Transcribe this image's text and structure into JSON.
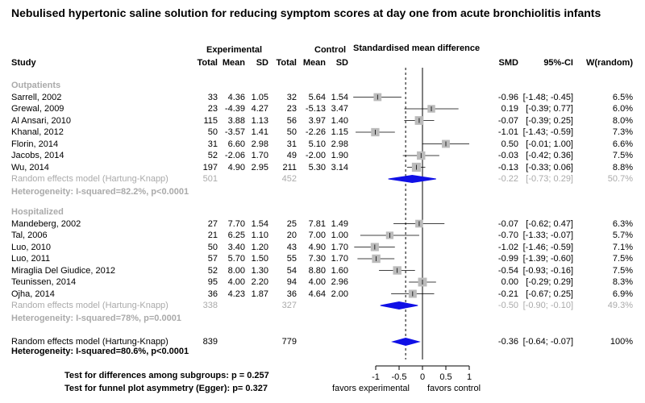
{
  "chart_data": {
    "type": "forest",
    "title": "Nebulised hypertonic saline solution for reducing symptom scores at day one from acute bronchiolitis infants",
    "header": {
      "experimental": "Experimental",
      "control": "Control",
      "effect": "Standardised mean difference",
      "study": "Study",
      "total_e": "Total",
      "mean_e": "Mean",
      "sd_e": "SD",
      "total_c": "Total",
      "mean_c": "Mean",
      "sd_c": "SD",
      "smd": "SMD",
      "ci": "95%-CI",
      "weight": "W(random)"
    },
    "x_axis": {
      "range": [
        -1.1,
        1.0
      ],
      "ticks": [
        -1,
        -0.5,
        0,
        0.5,
        1
      ],
      "tick_labels": [
        "-1",
        "-0.5",
        "0",
        "0.5",
        "1"
      ],
      "reference_line": 0,
      "pooled_line": -0.36,
      "label_left": "favors experimental",
      "label_right": "favors control"
    },
    "groups": [
      {
        "name": "Outpatients",
        "studies": [
          {
            "study": "Sarrell, 2002",
            "ne": "33",
            "me": "4.36",
            "sde": "1.05",
            "nc": "32",
            "mc": "5.64",
            "sdc": "1.54",
            "smd": "-0.96",
            "ci": "[-1.48; -0.45]",
            "w": "6.5%",
            "est": -0.96,
            "lo": -1.48,
            "hi": -0.45,
            "wt": 6.5
          },
          {
            "study": "Grewal, 2009",
            "ne": "23",
            "me": "-4.39",
            "sde": "4.27",
            "nc": "23",
            "mc": "-5.13",
            "sdc": "3.47",
            "smd": "0.19",
            "ci": "[-0.39; 0.77]",
            "w": "6.0%",
            "est": 0.19,
            "lo": -0.39,
            "hi": 0.77,
            "wt": 6.0
          },
          {
            "study": "Al Ansari, 2010",
            "ne": "115",
            "me": "3.88",
            "sde": "1.13",
            "nc": "56",
            "mc": "3.97",
            "sdc": "1.40",
            "smd": "-0.07",
            "ci": "[-0.39; 0.25]",
            "w": "8.0%",
            "est": -0.07,
            "lo": -0.39,
            "hi": 0.25,
            "wt": 8.0
          },
          {
            "study": "Khanal, 2012",
            "ne": "50",
            "me": "-3.57",
            "sde": "1.41",
            "nc": "50",
            "mc": "-2.26",
            "sdc": "1.15",
            "smd": "-1.01",
            "ci": "[-1.43; -0.59]",
            "w": "7.3%",
            "est": -1.01,
            "lo": -1.43,
            "hi": -0.59,
            "wt": 7.3
          },
          {
            "study": "Florin, 2014",
            "ne": "31",
            "me": "6.60",
            "sde": "2.98",
            "nc": "31",
            "mc": "5.10",
            "sdc": "2.98",
            "smd": "0.50",
            "ci": "[-0.01; 1.00]",
            "w": "6.6%",
            "est": 0.5,
            "lo": -0.01,
            "hi": 1.0,
            "wt": 6.6
          },
          {
            "study": "Jacobs, 2014",
            "ne": "52",
            "me": "-2.06",
            "sde": "1.70",
            "nc": "49",
            "mc": "-2.00",
            "sdc": "1.90",
            "smd": "-0.03",
            "ci": "[-0.42; 0.36]",
            "w": "7.5%",
            "est": -0.03,
            "lo": -0.42,
            "hi": 0.36,
            "wt": 7.5
          },
          {
            "study": "Wu, 2014",
            "ne": "197",
            "me": "4.90",
            "sde": "2.95",
            "nc": "211",
            "mc": "5.30",
            "sdc": "3.14",
            "smd": "-0.13",
            "ci": "[-0.33; 0.06]",
            "w": "8.8%",
            "est": -0.13,
            "lo": -0.33,
            "hi": 0.06,
            "wt": 8.8
          }
        ],
        "pooled": {
          "label": "Random effects model  (Hartung-Knapp)",
          "ne": "501",
          "nc": "452",
          "smd": "-0.22",
          "ci": "[-0.73; 0.29]",
          "w": "50.7%",
          "est": -0.22,
          "lo": -0.73,
          "hi": 0.29
        },
        "heterogeneity": "Heterogeneity: I-squared=82.2%, p<0.0001"
      },
      {
        "name": "Hospitalized",
        "studies": [
          {
            "study": "Mandeberg, 2002",
            "ne": "27",
            "me": "7.70",
            "sde": "1.54",
            "nc": "25",
            "mc": "7.81",
            "sdc": "1.49",
            "smd": "-0.07",
            "ci": "[-0.62; 0.47]",
            "w": "6.3%",
            "est": -0.07,
            "lo": -0.62,
            "hi": 0.47,
            "wt": 6.3
          },
          {
            "study": "Tal, 2006",
            "ne": "21",
            "me": "6.25",
            "sde": "1.10",
            "nc": "20",
            "mc": "7.00",
            "sdc": "1.00",
            "smd": "-0.70",
            "ci": "[-1.33; -0.07]",
            "w": "5.7%",
            "est": -0.7,
            "lo": -1.33,
            "hi": -0.07,
            "wt": 5.7
          },
          {
            "study": "Luo, 2010",
            "ne": "50",
            "me": "3.40",
            "sde": "1.20",
            "nc": "43",
            "mc": "4.90",
            "sdc": "1.70",
            "smd": "-1.02",
            "ci": "[-1.46; -0.59]",
            "w": "7.1%",
            "est": -1.02,
            "lo": -1.46,
            "hi": -0.59,
            "wt": 7.1
          },
          {
            "study": "Luo, 2011",
            "ne": "57",
            "me": "5.70",
            "sde": "1.50",
            "nc": "55",
            "mc": "7.30",
            "sdc": "1.70",
            "smd": "-0.99",
            "ci": "[-1.39; -0.60]",
            "w": "7.5%",
            "est": -0.99,
            "lo": -1.39,
            "hi": -0.6,
            "wt": 7.5
          },
          {
            "study": "Miraglia Del Giudice, 2012",
            "ne": "52",
            "me": "8.00",
            "sde": "1.30",
            "nc": "54",
            "mc": "8.80",
            "sdc": "1.60",
            "smd": "-0.54",
            "ci": "[-0.93; -0.16]",
            "w": "7.5%",
            "est": -0.54,
            "lo": -0.93,
            "hi": -0.16,
            "wt": 7.5
          },
          {
            "study": "Teunissen, 2014",
            "ne": "95",
            "me": "4.00",
            "sde": "2.20",
            "nc": "94",
            "mc": "4.00",
            "sdc": "2.96",
            "smd": "0.00",
            "ci": "[-0.29; 0.29]",
            "w": "8.3%",
            "est": 0.0,
            "lo": -0.29,
            "hi": 0.29,
            "wt": 8.3
          },
          {
            "study": "Ojha, 2014",
            "ne": "36",
            "me": "4.23",
            "sde": "1.87",
            "nc": "36",
            "mc": "4.64",
            "sdc": "2.00",
            "smd": "-0.21",
            "ci": "[-0.67; 0.25]",
            "w": "6.9%",
            "est": -0.21,
            "lo": -0.67,
            "hi": 0.25,
            "wt": 6.9
          }
        ],
        "pooled": {
          "label": "Random effects model  (Hartung-Knapp)",
          "ne": "338",
          "nc": "327",
          "smd": "-0.50",
          "ci": "[-0.90; -0.10]",
          "w": "49.3%",
          "est": -0.5,
          "lo": -0.9,
          "hi": -0.1
        },
        "heterogeneity": "Heterogeneity: I-squared=78%, p=0.0001"
      }
    ],
    "overall": {
      "label": "Random effects model  (Hartung-Knapp)",
      "ne": "839",
      "nc": "779",
      "smd": "-0.36",
      "ci": "[-0.64; -0.07]",
      "w": "100%",
      "est": -0.36,
      "lo": -0.64,
      "hi": -0.07
    },
    "overall_heterogeneity": "Heterogeneity: I-squared=80.6%, p<0.0001",
    "footer": {
      "subgroup_test": "Test for differences among subgroups: p = 0.257",
      "egger_test": "Test for funnel plot asymmetry (Egger): p= 0.327"
    },
    "colors": {
      "square": "#bbbbbb",
      "diamond": "#1010e6",
      "subgroup_text": "#aaaaaa"
    }
  }
}
